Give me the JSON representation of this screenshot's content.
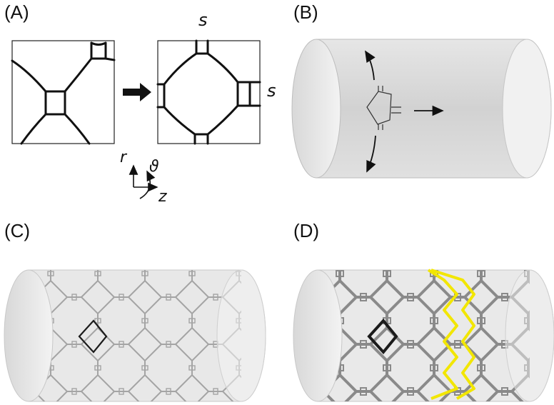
{
  "panels": {
    "a": {
      "label": "(A)",
      "periodicity_top": "s",
      "periodicity_right": "s"
    },
    "b": {
      "label": "(B)"
    },
    "c": {
      "label": "(C)"
    },
    "d": {
      "label": "(D)"
    }
  },
  "axes": {
    "radial": "r",
    "angular": "ϑ",
    "axial": "z"
  },
  "colors": {
    "cylinder_fill": "#dcdcdc",
    "cylinder_stroke": "#b9b9b9",
    "lattice_gray": "#9a9a9a",
    "highlight_black": "#1b1b1b",
    "highlight_yellow": "#f2e600"
  }
}
